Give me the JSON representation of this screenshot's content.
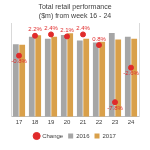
{
  "chart_data": {
    "type": "bar",
    "title": "Total retail performance ($m) from week 16 - 24",
    "categories": [
      "17",
      "18",
      "19",
      "20",
      "21",
      "22",
      "23",
      "24"
    ],
    "series": [
      {
        "name": "2016",
        "type": "bar",
        "color": "#a6a6a6",
        "values": [
          390,
          430,
          420,
          440,
          410,
          400,
          450,
          430
        ]
      },
      {
        "name": "2017",
        "type": "bar",
        "color": "#d9a04a",
        "values": [
          387,
          439,
          430,
          449,
          420,
          403,
          415,
          419
        ]
      },
      {
        "name": "Change",
        "type": "scatter",
        "axis": "y2",
        "color": "#e02b2b",
        "marker": "circle",
        "values": [
          -0.8,
          2.2,
          2.4,
          2.1,
          2.4,
          0.8,
          -7.8,
          -2.6
        ],
        "data_labels": true,
        "value_labels": [
          "-0.8%",
          "2.2%",
          "2.4%",
          "2.1%",
          "2.4%",
          "0.8%",
          "-7.8%",
          "-2.6%"
        ]
      }
    ],
    "ylim": [
      0,
      500
    ],
    "yticks": [
      0,
      100,
      200,
      300,
      400,
      500
    ],
    "y2lim": [
      -10,
      4
    ],
    "y2ticks": [
      -10,
      -8,
      -6,
      -4,
      -2,
      0,
      2,
      4
    ],
    "grid": false,
    "legend": "bottom",
    "tick_labels": "x"
  }
}
